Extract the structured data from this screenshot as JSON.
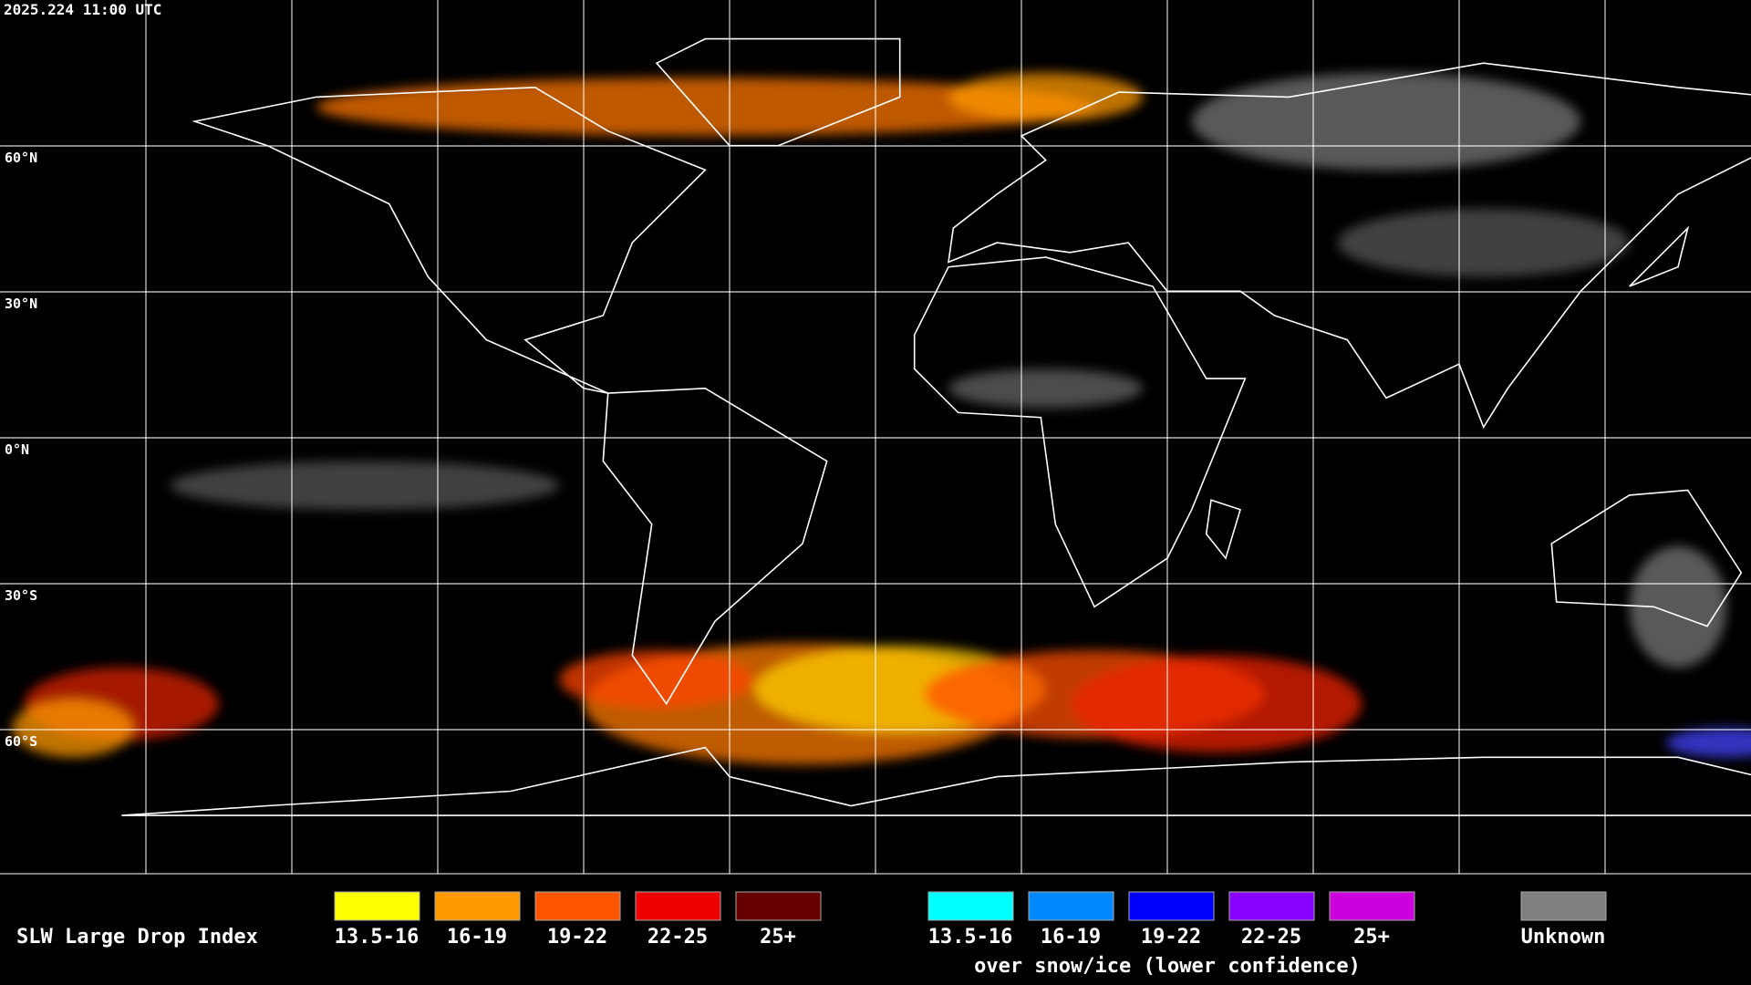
{
  "header": {
    "timestamp": "2025.224 11:00 UTC"
  },
  "map": {
    "latitude_labels": [
      "60°N",
      "30°N",
      "0°N",
      "30°S",
      "60°S"
    ]
  },
  "legend": {
    "title": "SLW Large Drop Index",
    "groups": [
      {
        "items": [
          {
            "label": "13.5-16",
            "color": "#ffff00"
          },
          {
            "label": "16-19",
            "color": "#ff9900"
          },
          {
            "label": "19-22",
            "color": "#ff5500"
          },
          {
            "label": "22-25",
            "color": "#ee0000"
          },
          {
            "label": "25+",
            "color": "#660000"
          }
        ]
      },
      {
        "items": [
          {
            "label": "13.5-16",
            "color": "#00ffff"
          },
          {
            "label": "16-19",
            "color": "#0088ff"
          },
          {
            "label": "19-22",
            "color": "#0000ff"
          },
          {
            "label": "22-25",
            "color": "#8800ff"
          },
          {
            "label": "25+",
            "color": "#cc00dd"
          }
        ],
        "caption": "over snow/ice (lower confidence)"
      }
    ],
    "unknown": {
      "label": "Unknown",
      "color": "#808080"
    }
  }
}
